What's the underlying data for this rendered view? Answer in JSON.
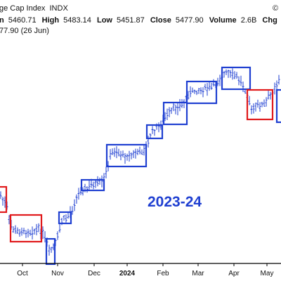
{
  "header": {
    "title": "ge Cap Index",
    "ticker": "INDX",
    "site_mark": "©",
    "ohlc_prefix": "n",
    "open": "5460.71",
    "high_label": "High",
    "high": "5483.14",
    "low_label": "Low",
    "low": "5451.87",
    "close_label": "Close",
    "close": "5477.90",
    "volume_label": "Volume",
    "volume": "2.6B",
    "chg_label": "Chg",
    "chg_sign": "+",
    "last_line": "77.90 (26 Jun)"
  },
  "annotation": {
    "text": "2023-24",
    "color": "#1f3fd1"
  },
  "colors": {
    "bars": "#1f3fd1",
    "box_blue": "#1f3fd1",
    "box_red": "#e0191b",
    "axis": "#000000"
  },
  "chart_data": {
    "type": "bar",
    "style": "ohlc",
    "x_tick_labels": [
      "Oct",
      "Nov",
      "Dec",
      "2024",
      "Feb",
      "Mar",
      "Apr",
      "May"
    ],
    "grid": false,
    "price_anchors": [
      {
        "period": "Sep 2023",
        "approx_close": 4450
      },
      {
        "period": "Late Oct 2023",
        "approx_low": 4120
      },
      {
        "period": "Mid Nov 2023",
        "approx_close": 4500
      },
      {
        "period": "Mid Dec 2023",
        "approx_close": 4720
      },
      {
        "period": "Late Jan 2024",
        "approx_close": 4880
      },
      {
        "period": "Mid Feb 2024",
        "approx_close": 5000
      },
      {
        "period": "Early Mar 2024",
        "approx_close": 5120
      },
      {
        "period": "Late Mar 2024",
        "approx_high": 5260
      },
      {
        "period": "Mid Apr 2024",
        "approx_low": 4970
      },
      {
        "period": "Late May 2024",
        "approx_close": 5300
      }
    ],
    "consolidation_boxes": [
      {
        "color": "red",
        "period": "Late Aug – early Sep 2023"
      },
      {
        "color": "red",
        "period": "Early – mid Oct 2023"
      },
      {
        "color": "blue",
        "period": "Late Oct 2023"
      },
      {
        "color": "blue",
        "period": "Early Nov 2023"
      },
      {
        "color": "blue",
        "period": "Early Dec 2023"
      },
      {
        "color": "blue",
        "period": "Mid – late Dec 2023"
      },
      {
        "color": "blue",
        "period": "Early Jan 2024"
      },
      {
        "color": "blue",
        "period": "Mid Jan 2024"
      },
      {
        "color": "blue",
        "period": "Early – mid Feb 2024"
      },
      {
        "color": "blue",
        "period": "Late Feb – mid Mar 2024"
      },
      {
        "color": "red",
        "period": "Late Mar – early Apr 2024"
      },
      {
        "color": "blue",
        "period": "Mid – late Apr 2024"
      }
    ]
  }
}
